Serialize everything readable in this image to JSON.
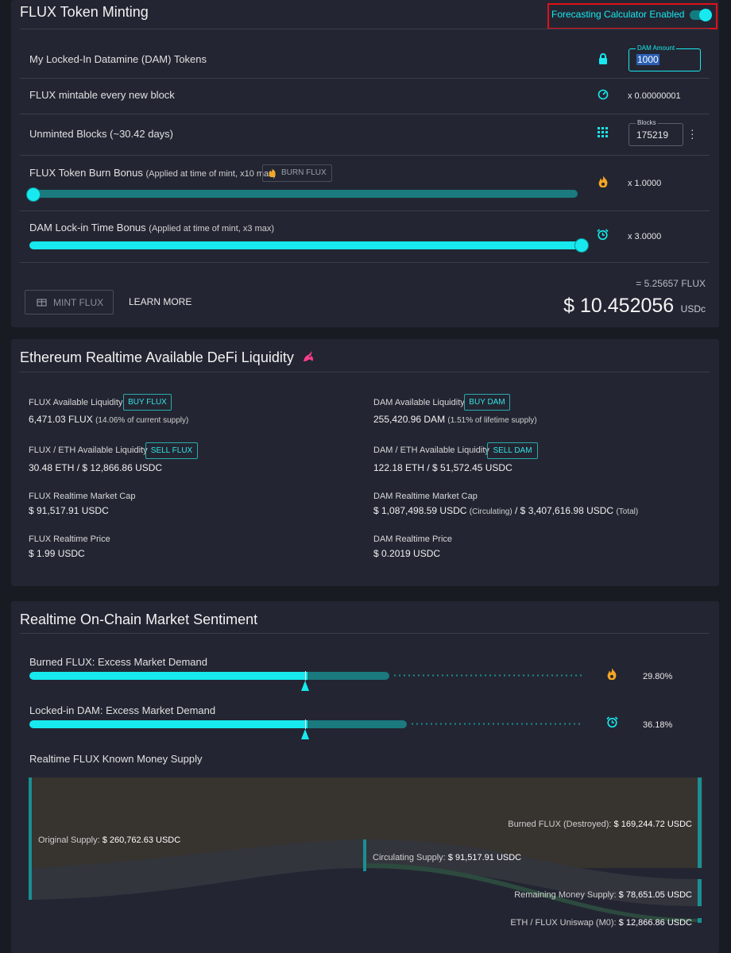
{
  "minting": {
    "title": "FLUX Token Minting",
    "forecast_toggle_label": "Forecasting Calculator Enabled",
    "forecast_enabled": true,
    "rows": {
      "locked": {
        "label": "My Locked-In Datamine (DAM) Tokens",
        "field_label": "DAM Amount",
        "field_value": "1000",
        "icon": "lock-icon"
      },
      "per_block": {
        "label": "FLUX mintable every new block",
        "value": "x 0.00000001",
        "icon": "timer-icon"
      },
      "unminted": {
        "label": "Unminted Blocks (~30.42 days)",
        "field_label": "Blocks",
        "field_value": "175219",
        "icon": "grid-icon"
      },
      "burn_bonus": {
        "label": "FLUX Token Burn Bonus",
        "note": "(Applied at time of mint, x10 max)",
        "button": "BURN FLUX",
        "value": "x 1.0000",
        "slider_fraction": 0.0,
        "icon": "flame-icon"
      },
      "lockin_bonus": {
        "label": "DAM Lock-in Time Bonus",
        "note": "(Applied at time of mint, x3 max)",
        "value": "x 3.0000",
        "slider_fraction": 1.0,
        "icon": "alarm-icon"
      }
    },
    "mint_button": "MINT FLUX",
    "learn_more": "LEARN MORE",
    "flux_estimate": "= 5.25657 FLUX",
    "usd_value": "$ 10.452056",
    "usd_unit": "USDc"
  },
  "liquidity": {
    "title": "Ethereum Realtime Available DeFi Liquidity",
    "icon": "unicorn-icon",
    "left": [
      {
        "label": "FLUX Available Liquidity",
        "button": "BUY FLUX",
        "value": "6,471.03 FLUX",
        "note": "(14.06% of current supply)"
      },
      {
        "label": "FLUX / ETH Available Liquidity",
        "button": "SELL FLUX",
        "value": "30.48 ETH / $ 12,866.86 USDC",
        "note": ""
      },
      {
        "label": "FLUX Realtime Market Cap",
        "button": "",
        "value": "$ 91,517.91 USDC",
        "note": ""
      },
      {
        "label": "FLUX Realtime Price",
        "button": "",
        "value": "$ 1.99 USDC",
        "note": ""
      }
    ],
    "right": [
      {
        "label": "DAM Available Liquidity",
        "button": "BUY DAM",
        "value": "255,420.96 DAM",
        "note": "(1.51% of lifetime supply)"
      },
      {
        "label": "DAM / ETH Available Liquidity",
        "button": "SELL DAM",
        "value": "122.18 ETH / $ 51,572.45 USDC",
        "note": ""
      },
      {
        "label": "DAM Realtime Market Cap",
        "button": "",
        "value": "$ 1,087,498.59 USDC",
        "note": "(Circulating)",
        "value2": "/ $ 3,407,616.98 USDC",
        "note2": "(Total)"
      },
      {
        "label": "DAM Realtime Price",
        "button": "",
        "value": "$ 0.2019 USDC",
        "note": ""
      }
    ]
  },
  "sentiment": {
    "title": "Realtime On-Chain Market Sentiment",
    "burned": {
      "label": "Burned FLUX: Excess Market Demand",
      "value": "29.80%",
      "fill_fraction": 0.298,
      "icon": "flame-icon"
    },
    "locked": {
      "label": "Locked-in DAM: Excess Market Demand",
      "value": "36.18%",
      "fill_fraction": 0.3618,
      "icon": "alarm-icon"
    },
    "supply_title": "Realtime FLUX Known Money Supply",
    "flows": {
      "original": {
        "label": "Original Supply:",
        "value": "$ 260,762.63 USDC"
      },
      "burned": {
        "label": "Burned FLUX (Destroyed):",
        "value": "$ 169,244.72 USDC"
      },
      "circulating": {
        "label": "Circulating Supply:",
        "value": "$ 91,517.91 USDC"
      },
      "remaining": {
        "label": "Remaining Money Supply:",
        "value": "$ 78,651.05 USDC"
      },
      "uniswap": {
        "label": "ETH / FLUX Uniswap (M0):",
        "value": "$ 12,866.86 USDC"
      }
    }
  },
  "colors": {
    "accent": "#17e9ee",
    "accent_dark": "#1a7a7e",
    "highlight_box": "#e0101a",
    "flame": "#f5a623"
  }
}
